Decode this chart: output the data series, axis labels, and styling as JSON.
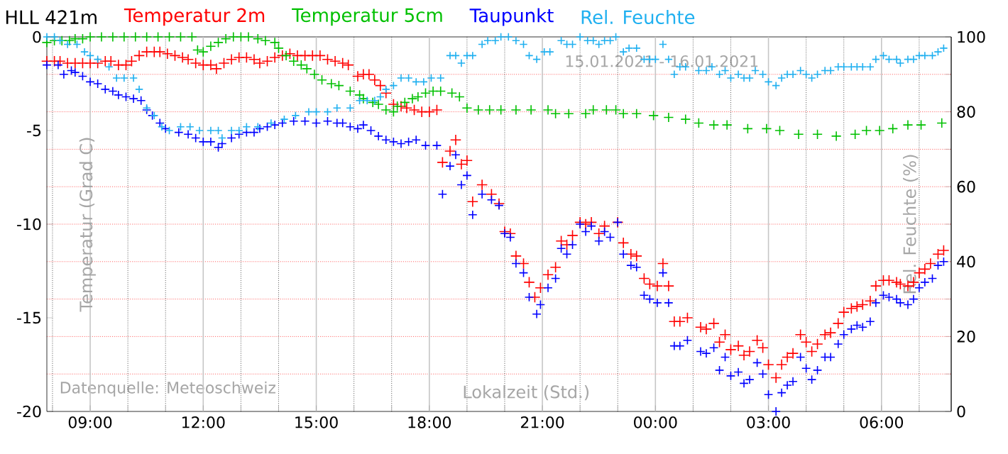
{
  "chart_data": {
    "type": "scatter",
    "title": "HLL 421m",
    "xlabel": "Lokalzeit (Std.)",
    "ylabel": "Temperatur (Grad C)",
    "y2label": "Rel. Feuchte (%)",
    "annotations": [
      "15.01.2021 - 16.01.2021",
      "Datenquelle: Meteoschweiz"
    ],
    "xlim": [
      "2021-01-15T07:51",
      "2021-01-16T07:51"
    ],
    "xticks": [
      {
        "value": "2021-01-15T08:00",
        "label": null
      },
      {
        "value": "2021-01-15T09:00",
        "label": "09:00"
      },
      {
        "value": "2021-01-15T10:00",
        "label": null
      },
      {
        "value": "2021-01-15T11:00",
        "label": null
      },
      {
        "value": "2021-01-15T12:00",
        "label": "12:00"
      },
      {
        "value": "2021-01-15T13:00",
        "label": null
      },
      {
        "value": "2021-01-15T14:00",
        "label": null
      },
      {
        "value": "2021-01-15T15:00",
        "label": "15:00"
      },
      {
        "value": "2021-01-15T16:00",
        "label": null
      },
      {
        "value": "2021-01-15T17:00",
        "label": null
      },
      {
        "value": "2021-01-15T18:00",
        "label": "18:00"
      },
      {
        "value": "2021-01-15T19:00",
        "label": null
      },
      {
        "value": "2021-01-15T20:00",
        "label": null
      },
      {
        "value": "2021-01-15T21:00",
        "label": "21:00"
      },
      {
        "value": "2021-01-15T22:00",
        "label": null
      },
      {
        "value": "2021-01-15T23:00",
        "label": null
      },
      {
        "value": "2021-01-16T00:00",
        "label": "00:00"
      },
      {
        "value": "2021-01-16T01:00",
        "label": null
      },
      {
        "value": "2021-01-16T02:00",
        "label": null
      },
      {
        "value": "2021-01-16T03:00",
        "label": "03:00"
      },
      {
        "value": "2021-01-16T04:00",
        "label": null
      },
      {
        "value": "2021-01-16T05:00",
        "label": null
      },
      {
        "value": "2021-01-16T06:00",
        "label": "06:00"
      },
      {
        "value": "2021-01-16T07:00",
        "label": null
      }
    ],
    "ylim": [
      -20,
      0
    ],
    "yticks": [
      -20,
      -15,
      -10,
      -5,
      0
    ],
    "y2lim": [
      0,
      100
    ],
    "y2ticks": [
      0,
      {
        "value": 10,
        "label": null
      },
      20,
      {
        "value": 30,
        "label": null
      },
      40,
      {
        "value": 50,
        "label": null
      },
      60,
      {
        "value": 70,
        "label": null
      },
      80,
      {
        "value": 90,
        "label": null
      },
      100
    ],
    "grid": true,
    "legend": "top",
    "marker": "cross",
    "series": [
      {
        "name": "Temperatur 2m",
        "color": "#ff0000",
        "x": [
          "2021-01-15T07:51",
          "2021-01-15T08:03",
          "2021-01-15T08:12",
          "2021-01-15T08:24",
          "2021-01-15T08:36",
          "2021-01-15T08:48",
          "2021-01-15T09:00",
          "2021-01-15T09:12",
          "2021-01-15T09:24",
          "2021-01-15T09:33",
          "2021-01-15T09:45",
          "2021-01-15T09:57",
          "2021-01-15T10:06",
          "2021-01-15T10:18",
          "2021-01-15T10:30",
          "2021-01-15T10:42",
          "2021-01-15T10:51",
          "2021-01-15T11:03",
          "2021-01-15T11:15",
          "2021-01-15T11:27",
          "2021-01-15T11:36",
          "2021-01-15T11:48",
          "2021-01-15T12:00",
          "2021-01-15T12:12",
          "2021-01-15T12:21",
          "2021-01-15T12:33",
          "2021-01-15T12:45",
          "2021-01-15T12:57",
          "2021-01-15T13:09",
          "2021-01-15T13:21",
          "2021-01-15T13:30",
          "2021-01-15T13:42",
          "2021-01-15T13:54",
          "2021-01-15T14:06",
          "2021-01-15T14:18",
          "2021-01-15T14:30",
          "2021-01-15T14:42",
          "2021-01-15T14:54",
          "2021-01-15T15:06",
          "2021-01-15T15:18",
          "2021-01-15T15:30",
          "2021-01-15T15:42",
          "2021-01-15T15:51",
          "2021-01-15T16:06",
          "2021-01-15T16:15",
          "2021-01-15T16:24",
          "2021-01-15T16:33",
          "2021-01-15T16:42",
          "2021-01-15T16:51",
          "2021-01-15T17:03",
          "2021-01-15T17:15",
          "2021-01-15T17:24",
          "2021-01-15T17:36",
          "2021-01-15T17:48",
          "2021-01-15T18:00",
          "2021-01-15T18:12",
          "2021-01-15T18:21",
          "2021-01-15T18:33",
          "2021-01-15T18:42",
          "2021-01-15T18:51",
          "2021-01-15T19:00",
          "2021-01-15T19:09",
          "2021-01-15T19:24",
          "2021-01-15T19:39",
          "2021-01-15T19:51",
          "2021-01-15T20:00",
          "2021-01-15T20:09",
          "2021-01-15T20:18",
          "2021-01-15T20:30",
          "2021-01-15T20:39",
          "2021-01-15T20:48",
          "2021-01-15T20:57",
          "2021-01-15T21:09",
          "2021-01-15T21:21",
          "2021-01-15T21:30",
          "2021-01-15T21:39",
          "2021-01-15T21:48",
          "2021-01-15T22:00",
          "2021-01-15T22:09",
          "2021-01-15T22:18",
          "2021-01-15T22:30",
          "2021-01-15T22:39",
          "2021-01-15T23:00",
          "2021-01-15T23:09",
          "2021-01-15T23:21",
          "2021-01-15T23:30",
          "2021-01-15T23:42",
          "2021-01-15T23:51",
          "2021-01-16T00:03",
          "2021-01-16T00:12",
          "2021-01-16T00:21",
          "2021-01-16T00:30",
          "2021-01-16T00:39",
          "2021-01-16T00:51",
          "2021-01-16T01:12",
          "2021-01-16T01:21",
          "2021-01-16T01:33",
          "2021-01-16T01:42",
          "2021-01-16T01:51",
          "2021-01-16T02:00",
          "2021-01-16T02:12",
          "2021-01-16T02:21",
          "2021-01-16T02:30",
          "2021-01-16T02:42",
          "2021-01-16T02:51",
          "2021-01-16T03:00",
          "2021-01-16T03:12",
          "2021-01-16T03:21",
          "2021-01-16T03:30",
          "2021-01-16T03:39",
          "2021-01-16T03:51",
          "2021-01-16T04:00",
          "2021-01-16T04:09",
          "2021-01-16T04:18",
          "2021-01-16T04:30",
          "2021-01-16T04:39",
          "2021-01-16T04:51",
          "2021-01-16T05:00",
          "2021-01-16T05:12",
          "2021-01-16T05:21",
          "2021-01-16T05:30",
          "2021-01-16T05:42",
          "2021-01-16T05:51",
          "2021-01-16T06:03",
          "2021-01-16T06:12",
          "2021-01-16T06:24",
          "2021-01-16T06:30",
          "2021-01-16T06:42",
          "2021-01-16T06:51",
          "2021-01-16T07:00",
          "2021-01-16T07:09",
          "2021-01-16T07:18",
          "2021-01-16T07:30",
          "2021-01-16T07:39"
        ],
        "values": [
          -1.3,
          -1.3,
          -1.3,
          -1.4,
          -1.4,
          -1.4,
          -1.4,
          -1.4,
          -1.3,
          -1.3,
          -1.5,
          -1.5,
          -1.3,
          -1.0,
          -0.8,
          -0.8,
          -0.8,
          -0.9,
          -1.0,
          -1.1,
          -1.2,
          -1.4,
          -1.5,
          -1.5,
          -1.7,
          -1.4,
          -1.2,
          -1.1,
          -1.1,
          -1.2,
          -1.4,
          -1.3,
          -1.1,
          -1.0,
          -0.9,
          -1.0,
          -1.0,
          -1.0,
          -1.0,
          -1.2,
          -1.3,
          -1.4,
          -1.5,
          -2.1,
          -2.0,
          -2.0,
          -2.3,
          -2.6,
          -3.0,
          -3.6,
          -3.7,
          -3.8,
          -3.9,
          -4.0,
          -4.0,
          -3.9,
          -6.7,
          -6.1,
          -5.5,
          -6.8,
          -6.6,
          -8.8,
          -7.9,
          -8.4,
          -8.9,
          -10.4,
          -10.5,
          -11.7,
          -12.1,
          -13.1,
          -13.9,
          -13.4,
          -12.7,
          -12.3,
          -10.9,
          -11.1,
          -10.6,
          -9.9,
          -10.0,
          -9.9,
          -10.5,
          -10.1,
          -9.9,
          -11.0,
          -11.6,
          -11.7,
          -12.9,
          -13.2,
          -13.3,
          -12.1,
          -13.3,
          -15.2,
          -15.2,
          -15.0,
          -15.5,
          -15.6,
          -15.3,
          -16.3,
          -15.9,
          -16.7,
          -16.5,
          -17.0,
          -16.8,
          -16.2,
          -16.6,
          -17.5,
          -18.2,
          -17.5,
          -17.1,
          -16.9,
          -15.9,
          -16.3,
          -16.8,
          -16.4,
          -15.9,
          -15.8,
          -15.3,
          -14.7,
          -14.5,
          -14.4,
          -14.3,
          -14.1,
          -13.3,
          -13.0,
          -13.0,
          -13.1,
          -13.2,
          -13.3,
          -13.1,
          -12.6,
          -12.4,
          -12.1,
          -11.6,
          -11.4
        ]
      },
      {
        "name": "Temperatur 5cm",
        "color": "#00c000",
        "x": [
          "2021-01-15T07:51",
          "2021-01-15T08:03",
          "2021-01-15T08:15",
          "2021-01-15T08:27",
          "2021-01-15T08:36",
          "2021-01-15T08:48",
          "2021-01-15T09:00",
          "2021-01-15T09:18",
          "2021-01-15T09:36",
          "2021-01-15T09:54",
          "2021-01-15T10:12",
          "2021-01-15T10:30",
          "2021-01-15T10:48",
          "2021-01-15T11:06",
          "2021-01-15T11:24",
          "2021-01-15T11:42",
          "2021-01-15T11:51",
          "2021-01-15T12:00",
          "2021-01-15T12:12",
          "2021-01-15T12:24",
          "2021-01-15T12:36",
          "2021-01-15T12:48",
          "2021-01-15T13:00",
          "2021-01-15T13:12",
          "2021-01-15T13:27",
          "2021-01-15T13:39",
          "2021-01-15T13:54",
          "2021-01-15T14:00",
          "2021-01-15T14:12",
          "2021-01-15T14:24",
          "2021-01-15T14:36",
          "2021-01-15T14:45",
          "2021-01-15T14:57",
          "2021-01-15T15:09",
          "2021-01-15T15:24",
          "2021-01-15T15:36",
          "2021-01-15T15:54",
          "2021-01-15T16:09",
          "2021-01-15T16:15",
          "2021-01-15T16:30",
          "2021-01-15T16:39",
          "2021-01-15T16:51",
          "2021-01-15T17:03",
          "2021-01-15T17:09",
          "2021-01-15T17:21",
          "2021-01-15T17:33",
          "2021-01-15T17:42",
          "2021-01-15T17:54",
          "2021-01-15T18:06",
          "2021-01-15T18:18",
          "2021-01-15T18:36",
          "2021-01-15T18:48",
          "2021-01-15T19:00",
          "2021-01-15T19:18",
          "2021-01-15T19:36",
          "2021-01-15T19:54",
          "2021-01-15T20:18",
          "2021-01-15T20:42",
          "2021-01-15T21:09",
          "2021-01-15T21:21",
          "2021-01-15T21:42",
          "2021-01-15T22:09",
          "2021-01-15T22:21",
          "2021-01-15T22:42",
          "2021-01-15T22:57",
          "2021-01-15T23:09",
          "2021-01-15T23:30",
          "2021-01-15T23:57",
          "2021-01-16T00:21",
          "2021-01-16T00:48",
          "2021-01-16T01:09",
          "2021-01-16T01:33",
          "2021-01-16T01:54",
          "2021-01-16T02:27",
          "2021-01-16T02:57",
          "2021-01-16T03:18",
          "2021-01-16T03:48",
          "2021-01-16T04:18",
          "2021-01-16T04:48",
          "2021-01-16T05:18",
          "2021-01-16T05:36",
          "2021-01-16T05:57",
          "2021-01-16T06:18",
          "2021-01-16T06:42",
          "2021-01-16T07:03",
          "2021-01-16T07:36"
        ],
        "values": [
          -0.3,
          -0.2,
          -0.2,
          -0.2,
          -0.1,
          -0.1,
          0.0,
          0.0,
          0.0,
          0.0,
          0.0,
          0.0,
          0.0,
          0.0,
          0.0,
          0.0,
          -0.7,
          -0.8,
          -0.5,
          -0.3,
          -0.1,
          0.0,
          0.0,
          0.0,
          -0.1,
          -0.2,
          -0.3,
          -0.6,
          -1.0,
          -1.3,
          -1.5,
          -1.7,
          -2.0,
          -2.3,
          -2.5,
          -2.6,
          -2.9,
          -3.1,
          -3.3,
          -3.5,
          -3.6,
          -3.9,
          -4.0,
          -3.7,
          -3.5,
          -3.3,
          -3.2,
          -3.0,
          -2.9,
          -2.9,
          -3.0,
          -3.2,
          -3.8,
          -3.9,
          -3.9,
          -3.9,
          -3.9,
          -3.9,
          -3.9,
          -4.1,
          -4.1,
          -4.1,
          -3.9,
          -3.9,
          -3.9,
          -4.1,
          -4.1,
          -4.2,
          -4.3,
          -4.4,
          -4.6,
          -4.7,
          -4.7,
          -4.9,
          -4.9,
          -5.0,
          -5.2,
          -5.2,
          -5.3,
          -5.2,
          -5.0,
          -5.0,
          -4.9,
          -4.7,
          -4.7,
          -4.6
        ]
      },
      {
        "name": "Taupunkt",
        "color": "#0000ff",
        "x": [
          "2021-01-15T07:51",
          "2021-01-15T08:09",
          "2021-01-15T08:18",
          "2021-01-15T08:30",
          "2021-01-15T08:36",
          "2021-01-15T08:48",
          "2021-01-15T09:00",
          "2021-01-15T09:12",
          "2021-01-15T09:24",
          "2021-01-15T09:36",
          "2021-01-15T09:45",
          "2021-01-15T09:57",
          "2021-01-15T10:09",
          "2021-01-15T10:21",
          "2021-01-15T10:30",
          "2021-01-15T10:39",
          "2021-01-15T10:51",
          "2021-01-15T11:00",
          "2021-01-15T11:21",
          "2021-01-15T11:36",
          "2021-01-15T11:48",
          "2021-01-15T12:00",
          "2021-01-15T12:12",
          "2021-01-15T12:24",
          "2021-01-15T12:30",
          "2021-01-15T12:45",
          "2021-01-15T12:57",
          "2021-01-15T13:09",
          "2021-01-15T13:21",
          "2021-01-15T13:30",
          "2021-01-15T13:42",
          "2021-01-15T13:54",
          "2021-01-15T14:06",
          "2021-01-15T14:24",
          "2021-01-15T14:42",
          "2021-01-15T15:00",
          "2021-01-15T15:18",
          "2021-01-15T15:33",
          "2021-01-15T15:42",
          "2021-01-15T15:54",
          "2021-01-15T16:06",
          "2021-01-15T16:15",
          "2021-01-15T16:27",
          "2021-01-15T16:39",
          "2021-01-15T16:51",
          "2021-01-15T17:03",
          "2021-01-15T17:15",
          "2021-01-15T17:27",
          "2021-01-15T17:39",
          "2021-01-15T17:54",
          "2021-01-15T18:12",
          "2021-01-15T18:21",
          "2021-01-15T18:33",
          "2021-01-15T18:42",
          "2021-01-15T18:51",
          "2021-01-15T19:00",
          "2021-01-15T19:09",
          "2021-01-15T19:24",
          "2021-01-15T19:39",
          "2021-01-15T19:51",
          "2021-01-15T20:00",
          "2021-01-15T20:09",
          "2021-01-15T20:18",
          "2021-01-15T20:30",
          "2021-01-15T20:39",
          "2021-01-15T20:51",
          "2021-01-15T20:57",
          "2021-01-15T21:09",
          "2021-01-15T21:21",
          "2021-01-15T21:30",
          "2021-01-15T21:39",
          "2021-01-15T21:48",
          "2021-01-15T22:00",
          "2021-01-15T22:09",
          "2021-01-15T22:18",
          "2021-01-15T22:30",
          "2021-01-15T22:39",
          "2021-01-15T22:48",
          "2021-01-15T23:00",
          "2021-01-15T23:09",
          "2021-01-15T23:21",
          "2021-01-15T23:30",
          "2021-01-15T23:42",
          "2021-01-15T23:51",
          "2021-01-16T00:03",
          "2021-01-16T00:12",
          "2021-01-16T00:21",
          "2021-01-16T00:30",
          "2021-01-16T00:39",
          "2021-01-16T00:51",
          "2021-01-16T01:12",
          "2021-01-16T01:21",
          "2021-01-16T01:33",
          "2021-01-16T01:42",
          "2021-01-16T01:51",
          "2021-01-16T02:00",
          "2021-01-16T02:12",
          "2021-01-16T02:21",
          "2021-01-16T02:30",
          "2021-01-16T02:42",
          "2021-01-16T02:51",
          "2021-01-16T03:00",
          "2021-01-16T03:12",
          "2021-01-16T03:21",
          "2021-01-16T03:30",
          "2021-01-16T03:39",
          "2021-01-16T03:51",
          "2021-01-16T04:00",
          "2021-01-16T04:09",
          "2021-01-16T04:18",
          "2021-01-16T04:30",
          "2021-01-16T04:39",
          "2021-01-16T04:51",
          "2021-01-16T05:00",
          "2021-01-16T05:12",
          "2021-01-16T05:21",
          "2021-01-16T05:30",
          "2021-01-16T05:42",
          "2021-01-16T05:51",
          "2021-01-16T06:03",
          "2021-01-16T06:12",
          "2021-01-16T06:24",
          "2021-01-16T06:30",
          "2021-01-16T06:42",
          "2021-01-16T06:51",
          "2021-01-16T07:00",
          "2021-01-16T07:09",
          "2021-01-16T07:21",
          "2021-01-16T07:30",
          "2021-01-16T07:39"
        ],
        "values": [
          -1.5,
          -1.5,
          -2.0,
          -1.8,
          -1.9,
          -2.1,
          -2.4,
          -2.5,
          -2.8,
          -2.9,
          -3.1,
          -3.2,
          -3.3,
          -3.4,
          -3.9,
          -4.2,
          -4.6,
          -4.9,
          -5.1,
          -5.2,
          -5.4,
          -5.6,
          -5.6,
          -5.9,
          -5.7,
          -5.4,
          -5.2,
          -5.1,
          -5.1,
          -4.9,
          -4.8,
          -4.7,
          -4.6,
          -4.5,
          -4.5,
          -4.6,
          -4.5,
          -4.6,
          -4.6,
          -4.8,
          -4.9,
          -4.7,
          -5.0,
          -5.3,
          -5.5,
          -5.6,
          -5.7,
          -5.6,
          -5.5,
          -5.8,
          -5.8,
          -8.4,
          -6.9,
          -6.3,
          -7.9,
          -7.4,
          -9.5,
          -8.4,
          -8.7,
          -9.0,
          -10.5,
          -10.7,
          -12.1,
          -12.6,
          -13.9,
          -14.8,
          -14.3,
          -13.4,
          -12.9,
          -11.3,
          -11.6,
          -11.1,
          -10.0,
          -10.4,
          -10.1,
          -10.9,
          -10.4,
          -10.7,
          -9.9,
          -11.6,
          -12.2,
          -12.3,
          -13.8,
          -14.0,
          -14.2,
          -12.6,
          -14.2,
          -16.5,
          -16.5,
          -16.2,
          -16.8,
          -16.9,
          -16.6,
          -17.8,
          -17.1,
          -18.1,
          -17.9,
          -18.5,
          -18.3,
          -17.4,
          -18.0,
          -19.1,
          -20.0,
          -19.0,
          -18.6,
          -18.4,
          -17.1,
          -17.7,
          -18.3,
          -17.8,
          -17.1,
          -17.1,
          -16.4,
          -15.9,
          -15.6,
          -15.4,
          -15.5,
          -15.2,
          -14.2,
          -13.8,
          -13.9,
          -14.0,
          -14.2,
          -14.3,
          -14.0,
          -13.4,
          -13.1,
          -12.9,
          -12.2,
          -12.0
        ]
      },
      {
        "name": "Rel. Feuchte",
        "color": "#20b0f0",
        "axis": "y2",
        "x": [
          "2021-01-15T07:51",
          "2021-01-15T08:03",
          "2021-01-15T08:12",
          "2021-01-15T08:24",
          "2021-01-15T08:39",
          "2021-01-15T08:51",
          "2021-01-15T09:00",
          "2021-01-15T09:12",
          "2021-01-15T09:30",
          "2021-01-15T09:42",
          "2021-01-15T09:54",
          "2021-01-15T10:09",
          "2021-01-15T10:18",
          "2021-01-15T10:30",
          "2021-01-15T10:42",
          "2021-01-15T10:54",
          "2021-01-15T11:06",
          "2021-01-15T11:24",
          "2021-01-15T11:39",
          "2021-01-15T11:54",
          "2021-01-15T12:12",
          "2021-01-15T12:24",
          "2021-01-15T12:30",
          "2021-01-15T12:45",
          "2021-01-15T12:57",
          "2021-01-15T13:09",
          "2021-01-15T13:27",
          "2021-01-15T13:48",
          "2021-01-15T14:09",
          "2021-01-15T14:27",
          "2021-01-15T14:48",
          "2021-01-15T15:00",
          "2021-01-15T15:18",
          "2021-01-15T15:33",
          "2021-01-15T15:54",
          "2021-01-15T16:09",
          "2021-01-15T16:21",
          "2021-01-15T16:33",
          "2021-01-15T16:42",
          "2021-01-15T16:51",
          "2021-01-15T17:03",
          "2021-01-15T17:15",
          "2021-01-15T17:27",
          "2021-01-15T17:39",
          "2021-01-15T17:51",
          "2021-01-15T18:03",
          "2021-01-15T18:18",
          "2021-01-15T18:33",
          "2021-01-15T18:42",
          "2021-01-15T18:51",
          "2021-01-15T19:00",
          "2021-01-15T19:09",
          "2021-01-15T19:24",
          "2021-01-15T19:33",
          "2021-01-15T19:45",
          "2021-01-15T19:54",
          "2021-01-15T20:06",
          "2021-01-15T20:18",
          "2021-01-15T20:30",
          "2021-01-15T20:39",
          "2021-01-15T20:51",
          "2021-01-15T21:03",
          "2021-01-15T21:12",
          "2021-01-15T21:30",
          "2021-01-15T21:39",
          "2021-01-15T21:48",
          "2021-01-15T22:00",
          "2021-01-15T22:12",
          "2021-01-15T22:21",
          "2021-01-15T22:30",
          "2021-01-15T22:39",
          "2021-01-15T22:48",
          "2021-01-15T22:57",
          "2021-01-15T23:09",
          "2021-01-15T23:18",
          "2021-01-15T23:30",
          "2021-01-15T23:42",
          "2021-01-15T23:51",
          "2021-01-16T00:00",
          "2021-01-16T00:12",
          "2021-01-16T00:21",
          "2021-01-16T00:30",
          "2021-01-16T00:39",
          "2021-01-16T00:48",
          "2021-01-16T01:09",
          "2021-01-16T01:21",
          "2021-01-16T01:30",
          "2021-01-16T01:42",
          "2021-01-16T01:51",
          "2021-01-16T02:00",
          "2021-01-16T02:12",
          "2021-01-16T02:21",
          "2021-01-16T02:30",
          "2021-01-16T02:39",
          "2021-01-16T02:51",
          "2021-01-16T03:00",
          "2021-01-16T03:12",
          "2021-01-16T03:21",
          "2021-01-16T03:30",
          "2021-01-16T03:39",
          "2021-01-16T03:51",
          "2021-01-16T04:00",
          "2021-01-16T04:09",
          "2021-01-16T04:18",
          "2021-01-16T04:30",
          "2021-01-16T04:39",
          "2021-01-16T04:51",
          "2021-01-16T05:00",
          "2021-01-16T05:12",
          "2021-01-16T05:21",
          "2021-01-16T05:30",
          "2021-01-16T05:42",
          "2021-01-16T05:51",
          "2021-01-16T06:03",
          "2021-01-16T06:12",
          "2021-01-16T06:24",
          "2021-01-16T06:30",
          "2021-01-16T06:42",
          "2021-01-16T06:51",
          "2021-01-16T07:00",
          "2021-01-16T07:09",
          "2021-01-16T07:21",
          "2021-01-16T07:30",
          "2021-01-16T07:39"
        ],
        "values": [
          100,
          100,
          99,
          98,
          98,
          96,
          95,
          94,
          92,
          89,
          89,
          89,
          86,
          81,
          79,
          76,
          75,
          76,
          76,
          75,
          75,
          75,
          73,
          75,
          75,
          76,
          76,
          77,
          78,
          79,
          80,
          80,
          80,
          81,
          81,
          83,
          83,
          83,
          84,
          86,
          87,
          89,
          89,
          88,
          88,
          89,
          89,
          95,
          95,
          93,
          95,
          95,
          98,
          99,
          99,
          100,
          100,
          99,
          98,
          95,
          94,
          96,
          96,
          99,
          98,
          98,
          100,
          99,
          99,
          98,
          99,
          99,
          100,
          96,
          97,
          97,
          94,
          94,
          94,
          98,
          94,
          90,
          92,
          92,
          91,
          91,
          92,
          90,
          91,
          89,
          90,
          89,
          89,
          91,
          90,
          88,
          87,
          89,
          90,
          90,
          91,
          90,
          89,
          90,
          91,
          91,
          92,
          92,
          92,
          92,
          92,
          92,
          94,
          95,
          94,
          94,
          93,
          94,
          94,
          95,
          95,
          95,
          96,
          97
        ]
      }
    ]
  }
}
